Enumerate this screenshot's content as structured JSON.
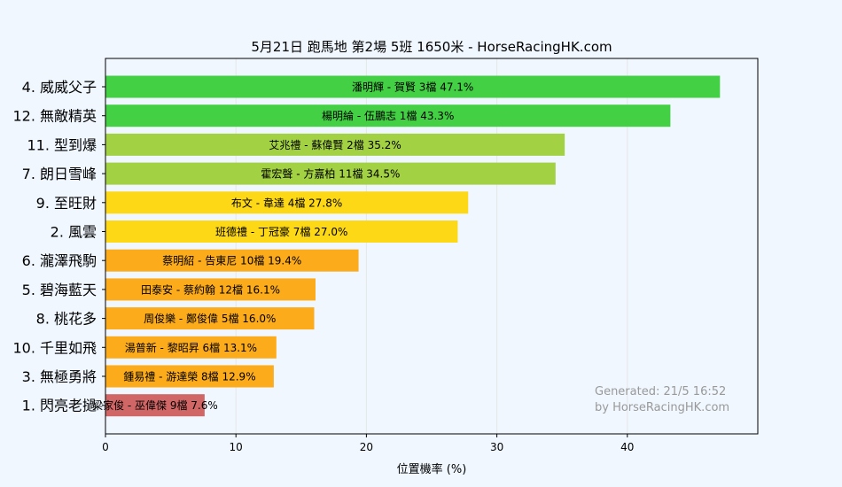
{
  "chart_data": {
    "type": "bar",
    "orientation": "horizontal",
    "title": "5月21日  跑馬地  第2場  5班  1650米 - HorseRacingHK.com",
    "xlabel": "位置機率 (%)",
    "ylabel": "",
    "xlim": [
      0,
      50
    ],
    "xticks": [
      0,
      10,
      20,
      30,
      40
    ],
    "grid": true,
    "categories": [
      "4. 威威父子",
      "12. 無敵精英",
      "11. 型到爆",
      "7. 朗日雪峰",
      "9. 至旺財",
      "2. 風雲",
      "6. 瀧澤飛駒",
      "5. 碧海藍天",
      "8. 桃花多",
      "10. 千里如飛",
      "3. 無極勇將",
      "1. 閃亮老撾"
    ],
    "values": [
      47.1,
      43.3,
      35.2,
      34.5,
      27.8,
      27.0,
      19.4,
      16.1,
      16.0,
      13.1,
      12.9,
      7.6
    ],
    "bar_labels": [
      "潘明輝 - 賀賢 3檔  47.1%",
      "楊明綸 - 伍鵬志 1檔  43.3%",
      "艾兆禮 - 蘇偉賢 2檔  35.2%",
      "霍宏聲 - 方嘉柏 11檔  34.5%",
      "布文 - 韋達 4檔  27.8%",
      "班德禮 - 丁冠豪 7檔  27.0%",
      "蔡明紹 - 告東尼 10檔  19.4%",
      "田泰安 - 蔡約翰 12檔  16.1%",
      "周俊樂 - 鄭俊偉 5檔  16.0%",
      "湯普新 - 黎昭昇 6檔  13.1%",
      "鍾易禮 - 游達榮 8檔  12.9%",
      "梁家俊 - 巫偉傑 9檔  7.6%"
    ],
    "colors": [
      "#44d044",
      "#44d044",
      "#a3d144",
      "#a3d144",
      "#fdd816",
      "#fdd816",
      "#fcab1b",
      "#fcab1b",
      "#fcab1b",
      "#fcab1b",
      "#fcab1b",
      "#d06666"
    ]
  },
  "footer": {
    "line1": "Generated: 21/5 16:52",
    "line2": "by HorseRacingHK.com"
  }
}
